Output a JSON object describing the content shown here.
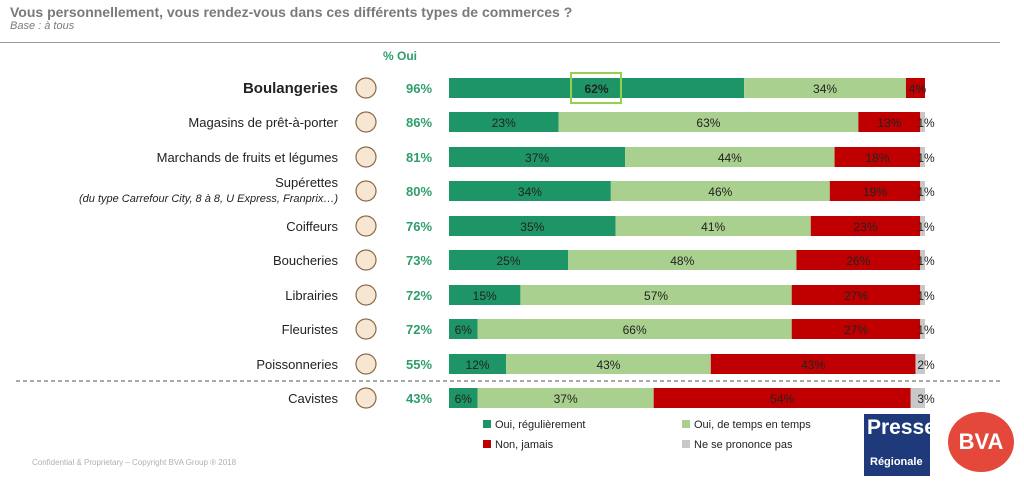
{
  "header": {
    "title": "Vous personnellement, vous rendez-vous dans ces différents types de commerces ?",
    "subtitle": "Base : à tous"
  },
  "chart_data": {
    "type": "bar",
    "stacked": true,
    "orientation": "horizontal",
    "pct_header": "% Oui",
    "categories": [
      "Boulangeries",
      "Magasins de prêt-à-porter",
      "Marchands de fruits et légumes",
      "Supérettes",
      "Coiffeurs",
      "Boucheries",
      "Librairies",
      "Fleuristes",
      "Poissonneries",
      "Cavistes"
    ],
    "category_sublabels": [
      "",
      "",
      "",
      "(du type Carrefour City, 8 à 8, U Express, Franprix…)",
      "",
      "",
      "",
      "",
      "",
      ""
    ],
    "icons": [
      "bread-icon",
      "hanger-icon",
      "avocado-icon",
      "basket-icon",
      "scissors-icon",
      "meat-icon",
      "book-icon",
      "flower-icon",
      "fish-icon",
      "wine-bottle-icon"
    ],
    "pct_oui": [
      "96%",
      "86%",
      "81%",
      "80%",
      "76%",
      "73%",
      "72%",
      "72%",
      "55%",
      "43%"
    ],
    "series": [
      {
        "name": "Oui, régulièrement",
        "color": "#1e9566",
        "values": [
          62,
          23,
          37,
          34,
          35,
          25,
          15,
          6,
          12,
          6
        ],
        "labels": [
          "62%",
          "23%",
          "37%",
          "34%",
          "35%",
          "25%",
          "15%",
          "6%",
          "12%",
          "6%"
        ]
      },
      {
        "name": "Oui, de temps en temps",
        "color": "#a9d08e",
        "values": [
          34,
          63,
          44,
          46,
          41,
          48,
          57,
          66,
          43,
          37
        ],
        "labels": [
          "34%",
          "63%",
          "44%",
          "46%",
          "41%",
          "48%",
          "57%",
          "66%",
          "43%",
          "37%"
        ]
      },
      {
        "name": "Non, jamais",
        "color": "#c00000",
        "values": [
          4,
          13,
          18,
          19,
          23,
          26,
          27,
          27,
          43,
          54
        ],
        "labels": [
          "4%",
          "13%",
          "18%",
          "19%",
          "23%",
          "26%",
          "27%",
          "27%",
          "43%",
          "54%"
        ]
      },
      {
        "name": "Ne se prononce pas",
        "color": "#c8c8c8",
        "values": [
          0,
          1,
          1,
          1,
          1,
          1,
          1,
          1,
          2,
          3
        ],
        "labels": [
          "",
          "1%",
          "1%",
          "1%",
          "1%",
          "1%",
          "1%",
          "1%",
          "2%",
          "3%"
        ]
      }
    ],
    "highlight": "Boulangeries",
    "separator_before": "Cavistes",
    "xlim": [
      0,
      100
    ],
    "grid": false,
    "legend_position": "bottom"
  },
  "logos": {
    "presse_line1": "Presse",
    "presse_line2": "Régionale",
    "bva": "BVA"
  },
  "footer": "Confidential & Proprietary – Copyright BVA Group ®  2018"
}
